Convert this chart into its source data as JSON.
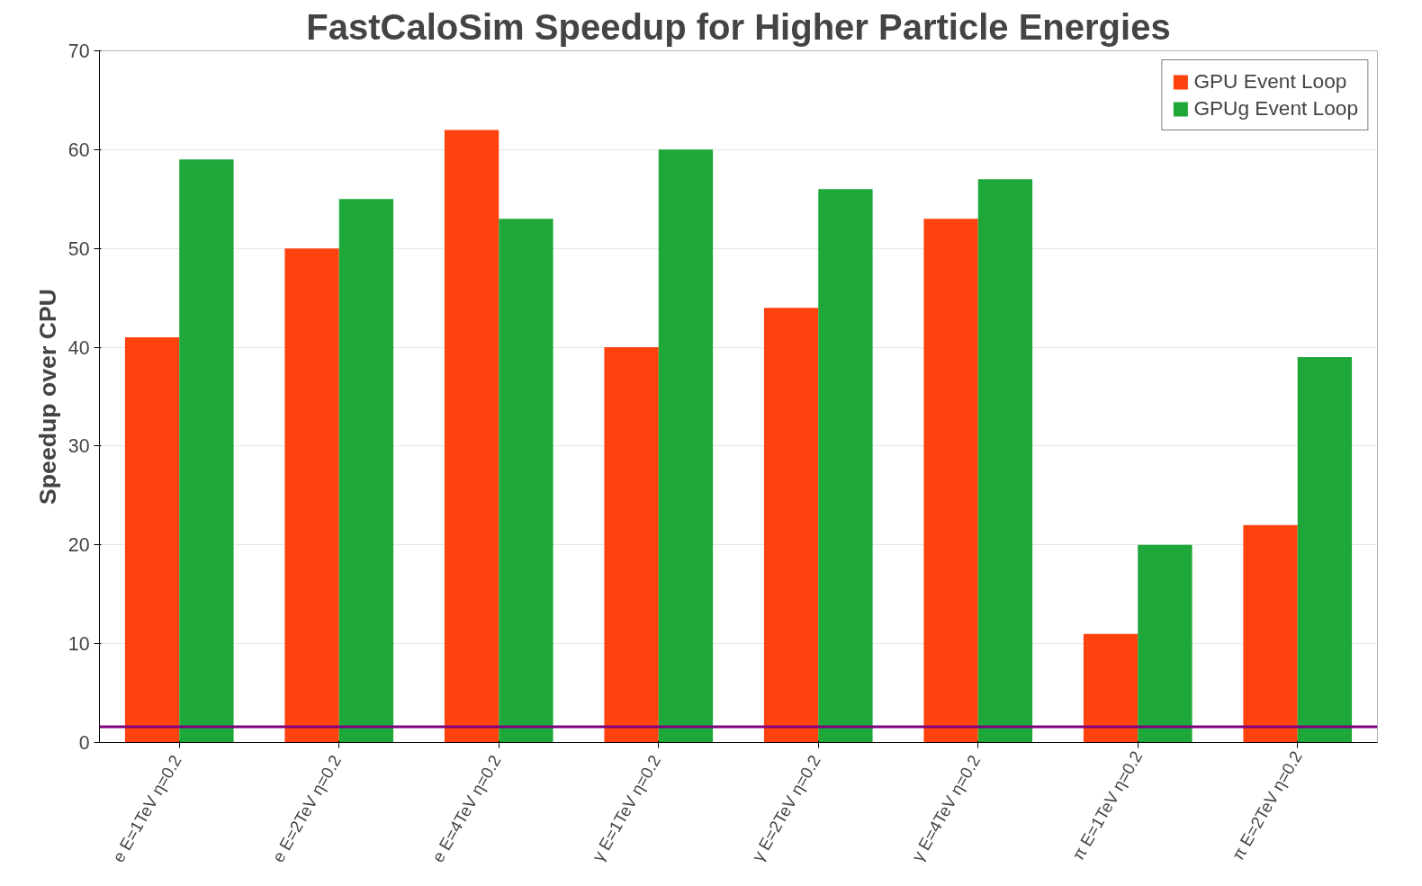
{
  "chart_data": {
    "type": "bar",
    "title": "FastCaloSim Speedup for Higher Particle Energies",
    "ylabel": "Speedup over CPU",
    "categories": [
      "e  E=1TeV η=0.2",
      "e  E=2TeV η=0.2",
      "e  E=4TeV η=0.2",
      "γ  E=1TeV η=0.2",
      "γ  E=2TeV η=0.2",
      "γ  E=4TeV η=0.2",
      "π E=1TeV η=0.2",
      "π E=2TeV η=0.2"
    ],
    "series": [
      {
        "name": "GPU Event Loop",
        "color": "#ff420e",
        "values": [
          41,
          50,
          62,
          40,
          44,
          53,
          11,
          22
        ]
      },
      {
        "name": "GPUg Event Loop",
        "color": "#1fa83a",
        "values": [
          59,
          55,
          53,
          60,
          56,
          57,
          20,
          39
        ]
      }
    ],
    "ylim": [
      0,
      70
    ],
    "yticks": [
      0,
      10,
      20,
      30,
      40,
      50,
      60,
      70
    ],
    "grid": "y",
    "legend": "top right",
    "ref_lines": [
      {
        "axis": "y",
        "value": 1.6,
        "label": null,
        "color": "#800080",
        "line_style": "solid"
      }
    ]
  }
}
